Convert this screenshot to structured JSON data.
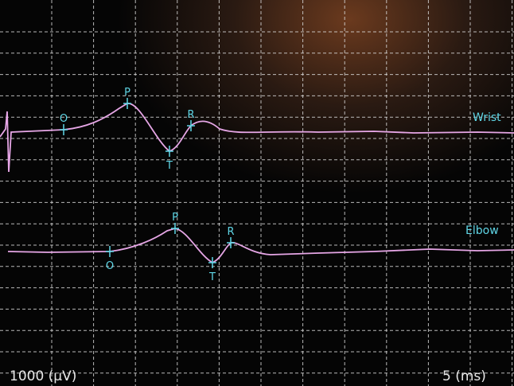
{
  "traces": [
    {
      "label": "Wrist",
      "markers": [
        "O",
        "P",
        "T",
        "R"
      ]
    },
    {
      "label": "Elbow",
      "markers": [
        "O",
        "P",
        "T",
        "R"
      ]
    }
  ],
  "footer": {
    "amplitude_scale": "1000 (μV)",
    "time_scale": "5 (ms)"
  }
}
